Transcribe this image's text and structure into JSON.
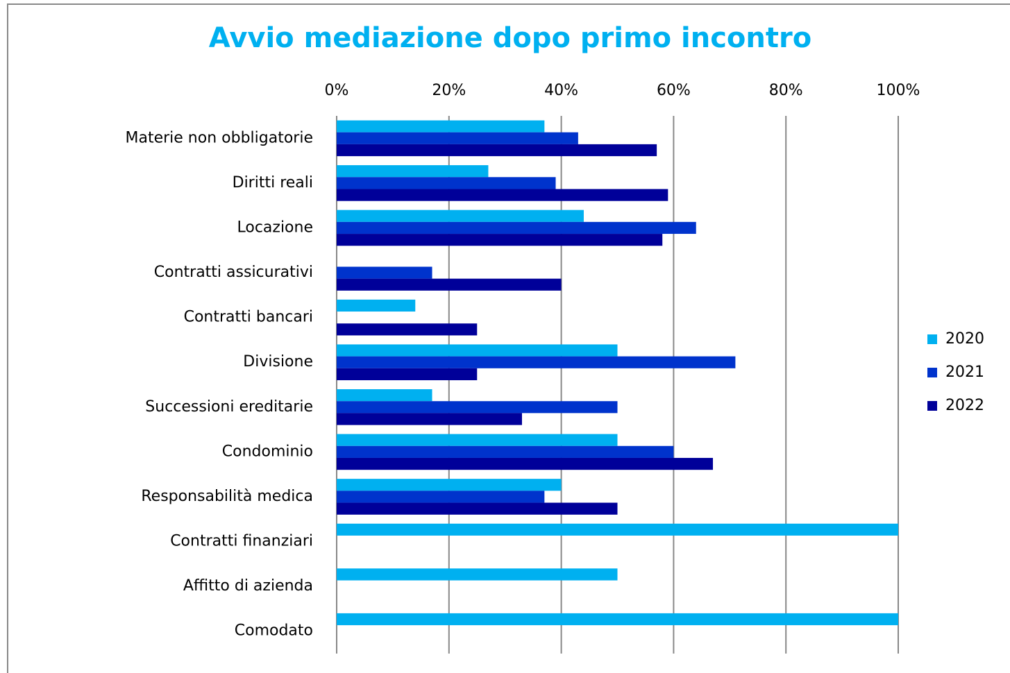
{
  "chart_data": {
    "type": "hbar",
    "title": "Avvio mediazione dopo primo incontro",
    "categories": [
      "Materie non obbligatorie",
      "Diritti reali",
      "Locazione",
      "Contratti assicurativi",
      "Contratti bancari",
      "Divisione",
      "Successioni ereditarie",
      "Condominio",
      "Responsabilità medica",
      "Contratti finanziari",
      "Affitto di azienda",
      "Comodato"
    ],
    "series": [
      {
        "name": "2020",
        "color": "#00b0f0",
        "values": [
          37,
          27,
          44,
          null,
          14,
          50,
          17,
          50,
          40,
          100,
          50,
          100
        ]
      },
      {
        "name": "2021",
        "color": "#0033cc",
        "values": [
          43,
          39,
          64,
          17,
          null,
          71,
          50,
          60,
          37,
          null,
          null,
          null
        ]
      },
      {
        "name": "2022",
        "color": "#000099",
        "values": [
          57,
          59,
          58,
          40,
          25,
          25,
          33,
          67,
          50,
          null,
          null,
          null
        ]
      }
    ],
    "xlim": [
      0,
      100
    ],
    "xticks": [
      {
        "value": 0,
        "label": "0%"
      },
      {
        "value": 20,
        "label": "20%"
      },
      {
        "value": 40,
        "label": "40%"
      },
      {
        "value": 60,
        "label": "60%"
      },
      {
        "value": 80,
        "label": "80%"
      },
      {
        "value": 100,
        "label": "100%"
      }
    ],
    "grid": true,
    "legend": "right"
  }
}
